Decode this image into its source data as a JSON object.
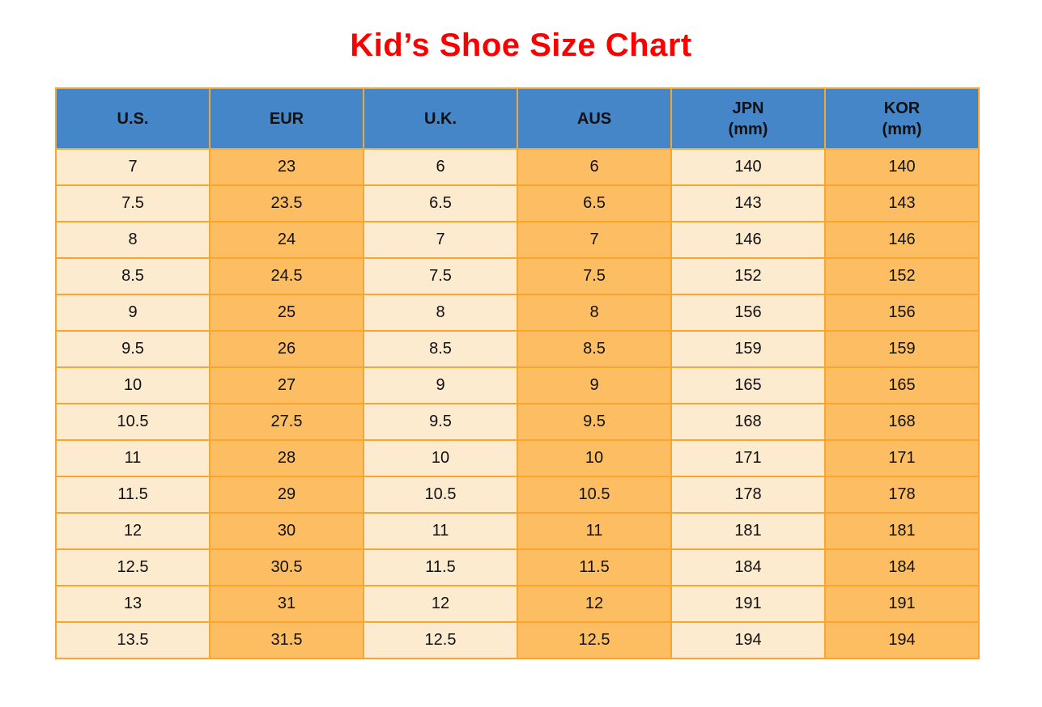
{
  "title": "Kid’s Shoe Size Chart",
  "colors": {
    "title_red": "#fa0000",
    "header_blue": "#4486c8",
    "cell_cream": "#fdebd0",
    "cell_orange": "#fdbe63",
    "grid_border_orange": "#faa52e",
    "text_black": "#111111",
    "page_background": "#ffffff"
  },
  "chart_data": {
    "type": "table",
    "title": "Kid’s Shoe Size Chart",
    "columns": [
      {
        "label": "U.S."
      },
      {
        "label": "EUR"
      },
      {
        "label": "U.K."
      },
      {
        "label": "AUS"
      },
      {
        "label": "JPN",
        "sub": "(mm)"
      },
      {
        "label": "KOR",
        "sub": "(mm)"
      }
    ],
    "rows": [
      [
        "7",
        "23",
        "6",
        "6",
        "140",
        "140"
      ],
      [
        "7.5",
        "23.5",
        "6.5",
        "6.5",
        "143",
        "143"
      ],
      [
        "8",
        "24",
        "7",
        "7",
        "146",
        "146"
      ],
      [
        "8.5",
        "24.5",
        "7.5",
        "7.5",
        "152",
        "152"
      ],
      [
        "9",
        "25",
        "8",
        "8",
        "156",
        "156"
      ],
      [
        "9.5",
        "26",
        "8.5",
        "8.5",
        "159",
        "159"
      ],
      [
        "10",
        "27",
        "9",
        "9",
        "165",
        "165"
      ],
      [
        "10.5",
        "27.5",
        "9.5",
        "9.5",
        "168",
        "168"
      ],
      [
        "11",
        "28",
        "10",
        "10",
        "171",
        "171"
      ],
      [
        "11.5",
        "29",
        "10.5",
        "10.5",
        "178",
        "178"
      ],
      [
        "12",
        "30",
        "11",
        "11",
        "181",
        "181"
      ],
      [
        "12.5",
        "30.5",
        "11.5",
        "11.5",
        "184",
        "184"
      ],
      [
        "13",
        "31",
        "12",
        "12",
        "191",
        "191"
      ],
      [
        "13.5",
        "31.5",
        "12.5",
        "12.5",
        "194",
        "194"
      ]
    ],
    "layout": {
      "grid": true,
      "column_color_pattern": [
        "cream",
        "orange",
        "cream",
        "orange",
        "cream",
        "orange"
      ],
      "header_row_color": "blue"
    }
  }
}
